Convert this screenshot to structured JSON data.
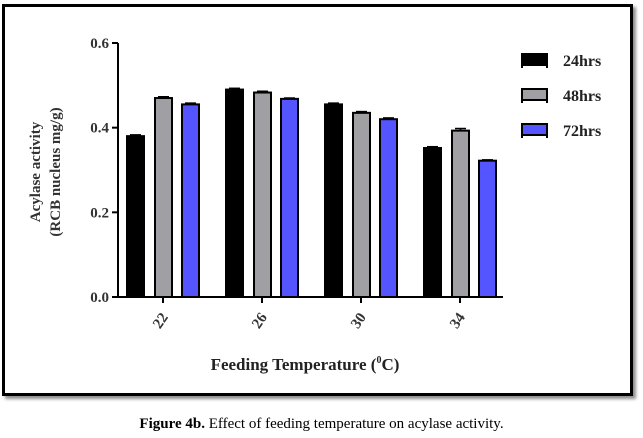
{
  "chart_data": {
    "type": "bar",
    "title": "",
    "xlabel": "Feeding Temperature (",
    "xlabel_sup": "0",
    "xlabel_end": "C)",
    "ylabel_lines": [
      "Acylase activity",
      "(RCB nucleus  mg/g)"
    ],
    "categories": [
      "22",
      "26",
      "30",
      "34"
    ],
    "series": [
      {
        "name": "24hrs",
        "color": "#000000",
        "values": [
          0.38,
          0.49,
          0.455,
          0.352
        ],
        "errors": [
          0.003,
          0.003,
          0.003,
          0.003
        ]
      },
      {
        "name": "48hrs",
        "color": "#a0a0a4",
        "values": [
          0.47,
          0.483,
          0.435,
          0.393
        ],
        "errors": [
          0.003,
          0.003,
          0.003,
          0.005
        ]
      },
      {
        "name": "72hrs",
        "color": "#5555ff",
        "values": [
          0.455,
          0.468,
          0.42,
          0.322
        ],
        "errors": [
          0.003,
          0.002,
          0.003,
          0.002
        ]
      }
    ],
    "ylim": [
      0,
      0.6
    ],
    "yticks": [
      "0.0",
      "0.2",
      "0.4",
      "0.6"
    ],
    "ytick_values": [
      0,
      0.2,
      0.4,
      0.6
    ],
    "grid": false,
    "legend_position": "right"
  },
  "caption": {
    "label": "Figure 4b.",
    "text": " Effect of feeding temperature on acylase activity."
  }
}
